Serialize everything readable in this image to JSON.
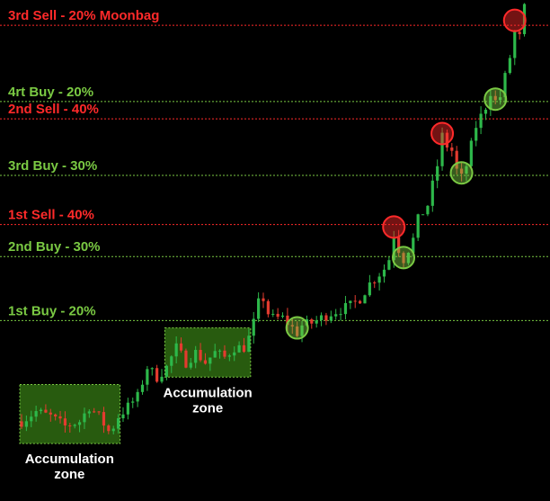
{
  "chart_data": {
    "type": "candlestick",
    "title": "",
    "colors": {
      "background": "#000000",
      "bull_candle": "#2db84a",
      "bear_candle": "#e33b2f",
      "buy": "#7ac943",
      "sell": "#ff2a2a",
      "zone_fill": "#2f6b12"
    },
    "price_range": [
      0,
      100
    ],
    "levels": [
      {
        "label": "3rd Sell - 20% Moonbag",
        "type": "sell",
        "price": 96.5
      },
      {
        "label": "4rt Buy - 20%",
        "type": "buy",
        "price": 81.0
      },
      {
        "label": "2nd Sell - 40%",
        "type": "sell",
        "price": 77.5
      },
      {
        "label": "3rd Buy - 30%",
        "type": "buy",
        "price": 66.0
      },
      {
        "label": "1st Sell - 40%",
        "type": "sell",
        "price": 56.0
      },
      {
        "label": "2nd Buy - 30%",
        "type": "buy",
        "price": 49.5
      },
      {
        "label": "1st Buy - 20%",
        "type": "buy",
        "price": 36.5
      }
    ],
    "zones": [
      {
        "label_line1": "Accumulation",
        "label_line2": "zone",
        "start_index": 0,
        "end_index": 20,
        "price_low": 11.5,
        "price_high": 23.5
      },
      {
        "label_line1": "Accumulation",
        "label_line2": "zone",
        "start_index": 30,
        "end_index": 47,
        "price_low": 25.0,
        "price_high": 35.0
      }
    ],
    "markers": [
      {
        "type": "buy",
        "index": 57,
        "price": 35.0
      },
      {
        "type": "sell",
        "index": 77,
        "price": 55.5
      },
      {
        "type": "buy",
        "index": 79,
        "price": 49.3
      },
      {
        "type": "sell",
        "index": 87,
        "price": 74.5
      },
      {
        "type": "buy",
        "index": 91,
        "price": 66.5
      },
      {
        "type": "buy",
        "index": 98,
        "price": 81.5
      },
      {
        "type": "sell",
        "index": 102,
        "price": 97.5
      }
    ]
  }
}
